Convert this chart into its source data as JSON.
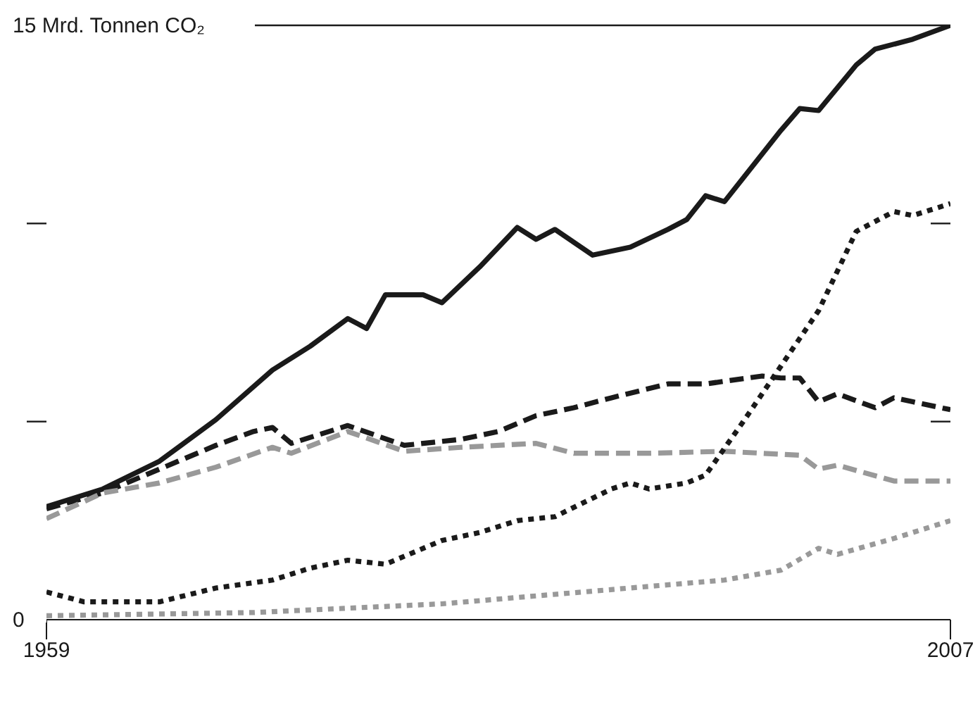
{
  "chart_data": {
    "type": "line",
    "xlim": [
      1959,
      2007
    ],
    "xticks": [
      1959,
      2007
    ],
    "ylim": [
      0,
      15
    ],
    "yticks": [
      {
        "value": 0,
        "label": "0"
      },
      {
        "value": 5,
        "label": null
      },
      {
        "value": 10,
        "label": null
      },
      {
        "value": 15,
        "label": "15 Mrd. Tonnen CO₂"
      }
    ],
    "grid": false,
    "legend": false,
    "marker": "none",
    "series": [
      {
        "color": "#1a1a1a",
        "line_style": "solid",
        "x": [
          1959,
          1962,
          1965,
          1968,
          1971,
          1973,
          1975,
          1976,
          1977,
          1979,
          1980,
          1982,
          1984,
          1985,
          1986,
          1988,
          1990,
          1992,
          1993,
          1994,
          1995,
          1998,
          1999,
          2000,
          2002,
          2003,
          2005,
          2007
        ],
        "values": [
          2.85,
          3.3,
          4.0,
          5.05,
          6.3,
          6.9,
          7.6,
          7.35,
          8.2,
          8.2,
          8.0,
          8.9,
          9.9,
          9.6,
          9.85,
          9.2,
          9.4,
          9.85,
          10.1,
          10.7,
          10.55,
          12.35,
          12.9,
          12.85,
          14.0,
          14.4,
          14.65,
          15.0
        ]
      },
      {
        "color": "#1a1a1a",
        "line_style": "dashed",
        "x": [
          1959,
          1962,
          1965,
          1966,
          1968,
          1970,
          1971,
          1972,
          1975,
          1978,
          1981,
          1983,
          1985,
          1987,
          1989,
          1992,
          1994,
          1997,
          1998,
          1999,
          2000,
          2001,
          2003,
          2004,
          2005,
          2007
        ],
        "values": [
          2.8,
          3.2,
          3.8,
          4.0,
          4.4,
          4.75,
          4.85,
          4.45,
          4.9,
          4.4,
          4.55,
          4.75,
          5.15,
          5.35,
          5.6,
          5.95,
          5.95,
          6.15,
          6.1,
          6.1,
          5.5,
          5.7,
          5.35,
          5.6,
          5.5,
          5.3
        ]
      },
      {
        "color": "#999999",
        "line_style": "dashed",
        "x": [
          1959,
          1962,
          1965,
          1968,
          1971,
          1972,
          1975,
          1978,
          1981,
          1985,
          1987,
          1991,
          1995,
          1999,
          2000,
          2001,
          2004,
          2007
        ],
        "values": [
          2.55,
          3.2,
          3.45,
          3.85,
          4.35,
          4.2,
          4.75,
          4.25,
          4.35,
          4.45,
          4.2,
          4.2,
          4.25,
          4.15,
          3.8,
          3.9,
          3.5,
          3.5
        ]
      },
      {
        "color": "#1a1a1a",
        "line_style": "dotted",
        "x": [
          1959,
          1961,
          1965,
          1968,
          1971,
          1973,
          1975,
          1977,
          1980,
          1982,
          1984,
          1986,
          1989,
          1990,
          1991,
          1993,
          1994,
          1996,
          1998,
          2000,
          2002,
          2004,
          2005,
          2007
        ],
        "values": [
          0.7,
          0.45,
          0.45,
          0.8,
          1.0,
          1.3,
          1.5,
          1.4,
          2.0,
          2.2,
          2.5,
          2.6,
          3.3,
          3.45,
          3.3,
          3.45,
          3.65,
          5.0,
          6.4,
          7.8,
          9.8,
          10.3,
          10.2,
          10.5
        ]
      },
      {
        "color": "#999999",
        "line_style": "dotted",
        "x": [
          1959,
          1970,
          1980,
          1985,
          1990,
          1995,
          1998,
          2000,
          2001,
          2004,
          2007
        ],
        "values": [
          0.1,
          0.18,
          0.4,
          0.6,
          0.8,
          1.0,
          1.25,
          1.8,
          1.65,
          2.05,
          2.5
        ]
      }
    ]
  }
}
